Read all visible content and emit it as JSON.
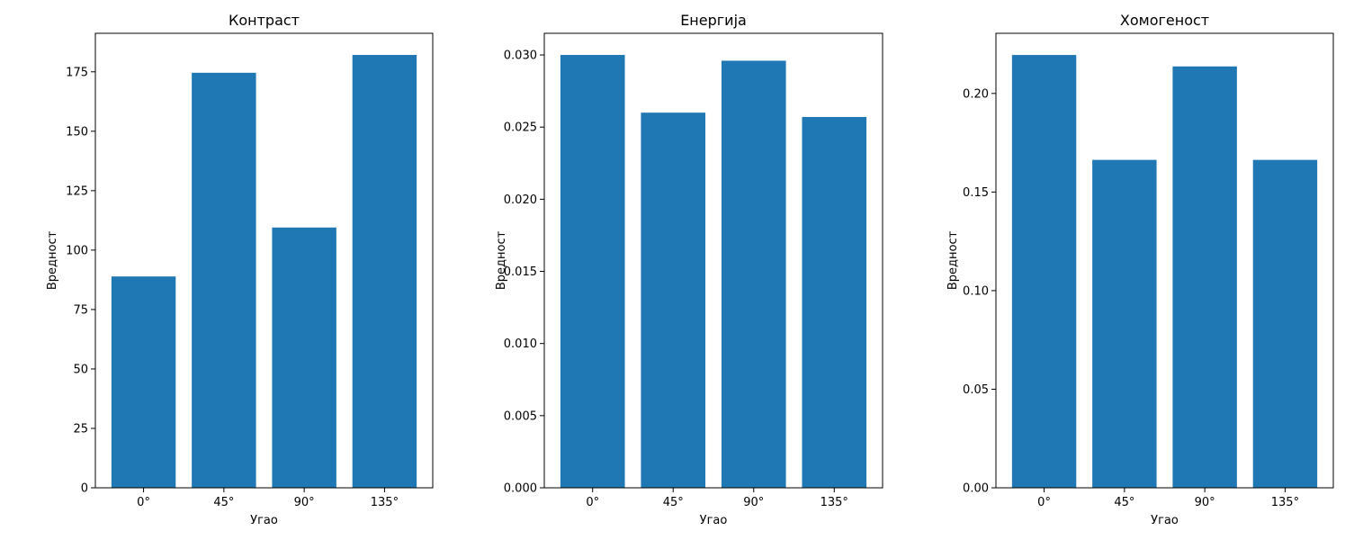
{
  "chart_data": [
    {
      "type": "bar",
      "title": "Контраст",
      "xlabel": "Угао",
      "ylabel": "Вредност",
      "categories": [
        "0°",
        "45°",
        "90°",
        "135°"
      ],
      "values": [
        88.9,
        174.6,
        109.5,
        182.1
      ],
      "ylim": [
        0,
        191.2
      ],
      "yticks": [
        0,
        25,
        50,
        75,
        100,
        125,
        150,
        175
      ],
      "ytick_labels": [
        "0",
        "25",
        "50",
        "75",
        "100",
        "125",
        "150",
        "175"
      ],
      "color": "#1f77b4",
      "grid": false
    },
    {
      "type": "bar",
      "title": "Енергија",
      "xlabel": "Угао",
      "ylabel": "Вредност",
      "categories": [
        "0°",
        "45°",
        "90°",
        "135°"
      ],
      "values": [
        0.03,
        0.026,
        0.0296,
        0.0257
      ],
      "ylim": [
        0,
        0.0315
      ],
      "yticks": [
        0,
        0.005,
        0.01,
        0.015,
        0.02,
        0.025,
        0.03
      ],
      "ytick_labels": [
        "0.000",
        "0.005",
        "0.010",
        "0.015",
        "0.020",
        "0.025",
        "0.030"
      ],
      "color": "#1f77b4",
      "grid": false
    },
    {
      "type": "bar",
      "title": "Хомогеност",
      "xlabel": "Угао",
      "ylabel": "Вредност",
      "categories": [
        "0°",
        "45°",
        "90°",
        "135°"
      ],
      "values": [
        0.2195,
        0.1663,
        0.2137,
        0.1663
      ],
      "ylim": [
        0,
        0.2305
      ],
      "yticks": [
        0,
        0.05,
        0.1,
        0.15,
        0.2
      ],
      "ytick_labels": [
        "0.00",
        "0.05",
        "0.10",
        "0.15",
        "0.20"
      ],
      "color": "#1f77b4",
      "grid": false
    }
  ]
}
